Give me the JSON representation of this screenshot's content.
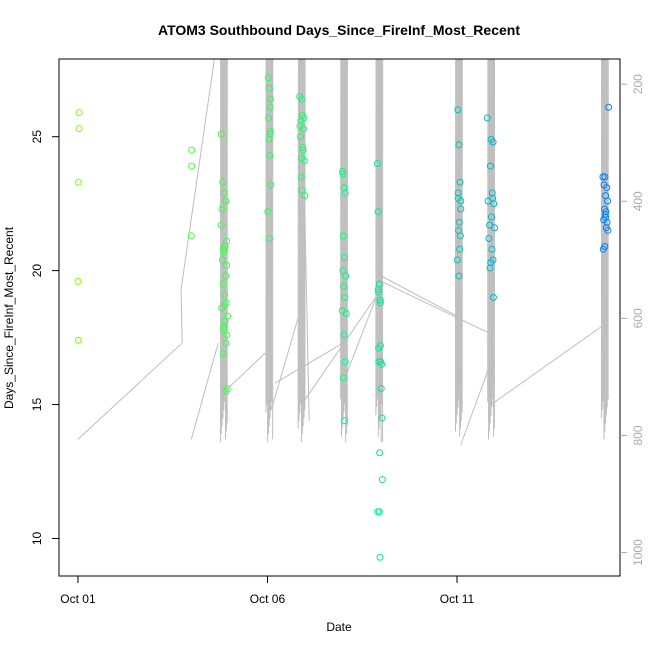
{
  "chart_data": {
    "type": "scatter",
    "title": "ATOM3 Southbound Days_Since_FireInf_Most_Recent",
    "xlabel": "Date",
    "ylabel": "Days_Since_FireInf_Most_Recent",
    "x_unit": "day of October",
    "x_ticks": [
      {
        "value": 1,
        "label": "Oct 01"
      },
      {
        "value": 6,
        "label": "Oct 06"
      },
      {
        "value": 11,
        "label": "Oct 11"
      }
    ],
    "xlim": [
      0.5,
      15.3
    ],
    "ylim": [
      8.6,
      27.9
    ],
    "y_ticks": [
      10,
      15,
      20,
      25
    ],
    "y2_ticks": [
      200,
      400,
      600,
      800,
      1000
    ],
    "y2lim": [
      1040,
      157
    ],
    "grid": false,
    "legend": "none",
    "colors": {
      "points_start": "#80ff00",
      "points_mid": "#00ff80",
      "points_end": "#0080ff",
      "line": "#bebebe",
      "axis": "#000000",
      "right_axis": "#aaaaaa"
    },
    "series": [
      {
        "x": [
          1.03,
          1.03,
          1.01,
          1.0,
          1.01,
          4.0,
          4.0,
          3.99,
          4.78,
          4.82,
          4.86,
          4.8,
          4.9,
          4.78,
          4.92,
          4.88,
          4.85,
          4.84,
          4.81,
          4.92,
          4.9,
          4.83,
          4.87,
          4.91,
          4.79,
          4.86,
          4.95,
          4.88,
          4.84,
          4.93,
          4.9,
          4.83,
          4.86,
          4.91,
          4.94,
          6.02,
          6.05,
          6.07,
          6.03,
          6.08,
          6.04,
          6.06,
          6.09,
          6.01,
          6.05,
          6.07,
          6.08,
          6.85,
          6.9,
          6.92,
          6.88,
          6.95,
          6.87,
          6.93,
          6.97,
          6.89,
          6.91,
          6.94,
          6.86,
          6.98,
          6.9,
          6.96,
          7.98,
          8.02,
          8.05,
          8.0,
          8.03,
          7.99,
          8.06,
          8.01,
          8.04,
          7.97,
          8.08,
          8.02,
          8.05,
          8.0,
          8.03,
          7.99,
          8.9,
          8.92,
          8.95,
          8.93,
          8.97,
          8.98,
          8.94,
          8.99,
          9.0,
          9.02,
          8.96,
          9.03,
          8.91,
          8.95,
          8.97,
          8.93,
          9.01,
          8.98,
          8.92,
          11.02,
          11.05,
          11.08,
          11.03,
          11.1,
          11.06,
          11.04,
          11.09,
          11.07,
          11.01,
          11.05,
          11.1,
          11.03,
          11.8,
          11.9,
          11.95,
          11.88,
          11.93,
          11.82,
          11.97,
          11.91,
          11.86,
          11.99,
          11.84,
          11.92,
          11.95,
          11.89,
          11.87,
          11.96,
          11.94,
          14.85,
          14.9,
          14.88,
          14.95,
          14.92,
          14.97,
          14.89,
          14.93,
          14.91,
          14.87,
          14.96,
          14.94,
          14.98,
          14.9,
          14.86,
          14.92,
          15.0
        ],
        "y": [
          25.9,
          25.3,
          23.3,
          19.6,
          17.4,
          24.5,
          23.9,
          21.3,
          25.1,
          23.3,
          22.9,
          22.3,
          22.6,
          21.7,
          21.1,
          20.9,
          20.7,
          20.8,
          20.4,
          20.2,
          19.8,
          19.5,
          19.1,
          18.8,
          18.6,
          18.7,
          18.3,
          18.1,
          17.8,
          17.6,
          17.3,
          16.9,
          17.9,
          15.5,
          15.6,
          27.2,
          26.8,
          26.1,
          25.7,
          25.2,
          24.9,
          24.3,
          23.2,
          22.2,
          21.2,
          25.1,
          26.4,
          26.5,
          26.4,
          25.8,
          25.6,
          25.3,
          25.0,
          24.6,
          24.1,
          23.5,
          23.0,
          24.5,
          25.4,
          22.8,
          24.2,
          25.7,
          23.7,
          23.1,
          22.9,
          21.3,
          20.5,
          20.0,
          19.8,
          19.4,
          19.0,
          18.5,
          18.4,
          17.6,
          16.6,
          16.0,
          14.4,
          23.6,
          24.0,
          22.2,
          19.5,
          19.2,
          18.9,
          17.2,
          16.6,
          16.6,
          15.6,
          14.5,
          13.2,
          12.2,
          11.0,
          11.0,
          9.3,
          17.1,
          16.5,
          18.8,
          19.3,
          26.0,
          24.7,
          23.3,
          22.9,
          22.3,
          21.8,
          21.5,
          21.3,
          20.8,
          20.4,
          19.8,
          22.6,
          22.7,
          25.7,
          24.9,
          24.8,
          23.9,
          22.9,
          22.6,
          22.5,
          22.0,
          21.7,
          21.6,
          21.2,
          20.8,
          20.4,
          20.3,
          20.1,
          19.0,
          22.7,
          23.5,
          23.5,
          23.2,
          23.1,
          22.8,
          22.6,
          22.3,
          22.2,
          22.1,
          21.9,
          21.8,
          21.6,
          21.5,
          20.9,
          20.8,
          22.0,
          26.1
        ]
      }
    ]
  }
}
